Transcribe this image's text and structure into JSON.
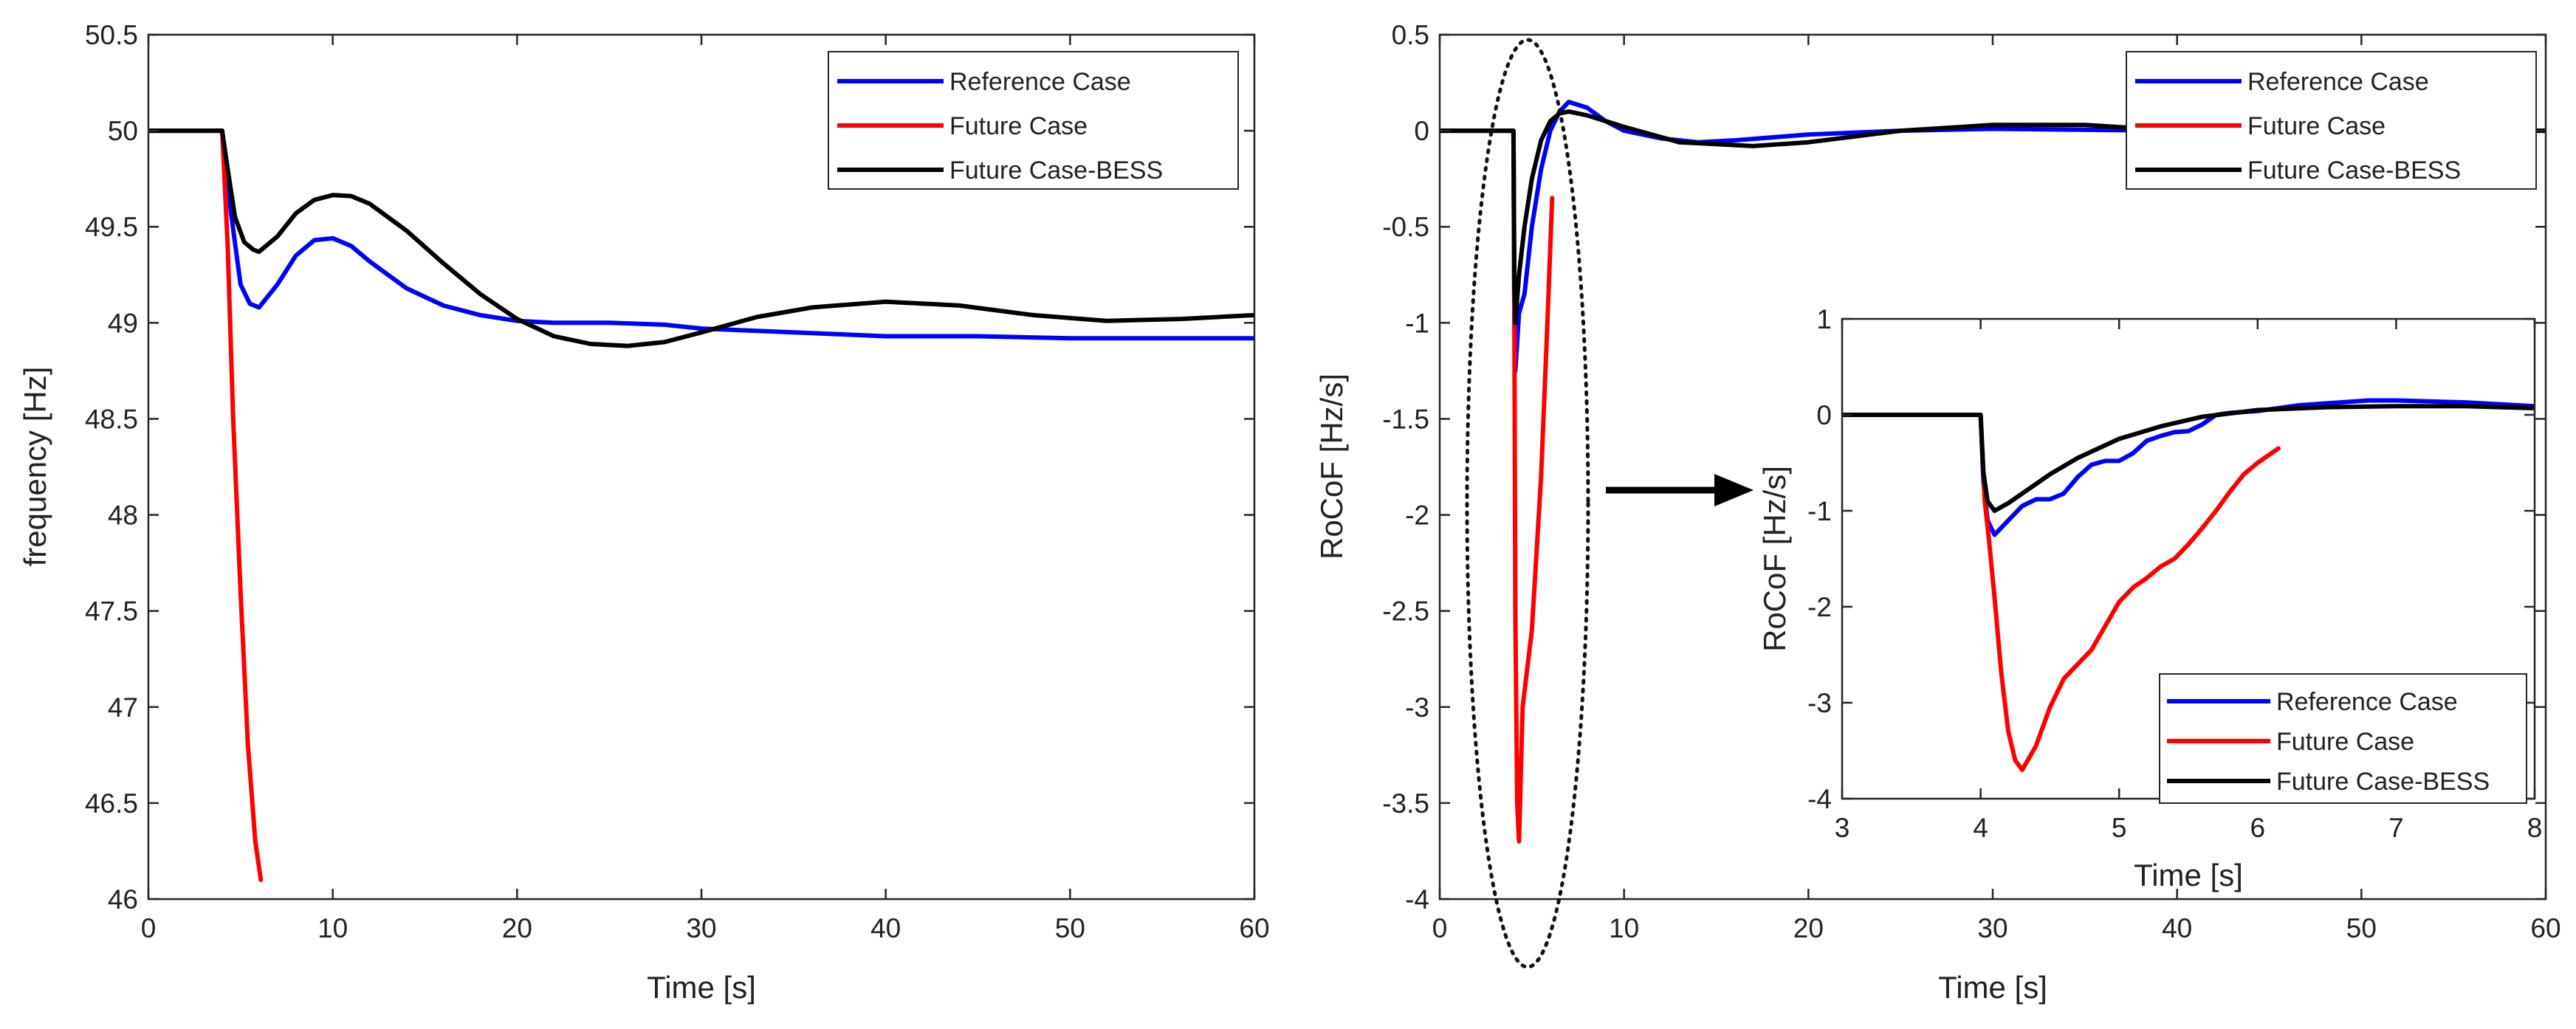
{
  "chart_data": [
    {
      "type": "line",
      "panel": "left",
      "title": "",
      "xlabel": "Time [s]",
      "ylabel": "frequency [Hz]",
      "xlim": [
        0,
        60
      ],
      "ylim": [
        46,
        50.5
      ],
      "xticks": [
        "0",
        "10",
        "20",
        "30",
        "40",
        "50",
        "60"
      ],
      "yticks": [
        "46",
        "46.5",
        "47",
        "47.5",
        "48",
        "48.5",
        "49",
        "49.5",
        "50",
        "50.5"
      ],
      "legend_position": "top-right",
      "series": [
        {
          "name": "Reference Case",
          "color": "#0000ff",
          "x": [
            0,
            4,
            4.3,
            5,
            5.5,
            6,
            7,
            8,
            9,
            10,
            11,
            12,
            14,
            16,
            18,
            20,
            22,
            25,
            28,
            30,
            35,
            40,
            45,
            50,
            55,
            60
          ],
          "y": [
            50,
            50,
            49.7,
            49.2,
            49.1,
            49.08,
            49.2,
            49.35,
            49.43,
            49.44,
            49.4,
            49.32,
            49.18,
            49.09,
            49.04,
            49.01,
            49.0,
            49.0,
            48.99,
            48.97,
            48.95,
            48.93,
            48.93,
            48.92,
            48.92,
            48.92
          ]
        },
        {
          "name": "Future Case",
          "color": "#ff0000",
          "x": [
            0,
            4,
            4.3,
            4.6,
            5.0,
            5.4,
            5.8,
            6.1
          ],
          "y": [
            50,
            50,
            49.4,
            48.5,
            47.6,
            46.8,
            46.3,
            46.1
          ]
        },
        {
          "name": "Future Case-BESS",
          "color": "#000000",
          "x": [
            0,
            4,
            4.3,
            4.7,
            5.2,
            5.7,
            6.0,
            7,
            8,
            9,
            10,
            11,
            12,
            14,
            16,
            18,
            20,
            22,
            24,
            26,
            28,
            30,
            33,
            36,
            40,
            44,
            48,
            52,
            56,
            60
          ],
          "y": [
            50,
            50,
            49.8,
            49.55,
            49.42,
            49.38,
            49.37,
            49.45,
            49.57,
            49.64,
            49.665,
            49.66,
            49.62,
            49.48,
            49.31,
            49.15,
            49.02,
            48.93,
            48.89,
            48.88,
            48.9,
            48.95,
            49.03,
            49.08,
            49.11,
            49.09,
            49.04,
            49.01,
            49.02,
            49.04
          ]
        }
      ]
    },
    {
      "type": "line",
      "panel": "right",
      "title": "",
      "xlabel": "Time [s]",
      "ylabel": "RoCoF [Hz/s]",
      "xlim": [
        0,
        60
      ],
      "ylim": [
        -4,
        0.5
      ],
      "xticks": [
        "0",
        "10",
        "20",
        "30",
        "40",
        "50",
        "60"
      ],
      "yticks": [
        "-4",
        "-3.5",
        "-3",
        "-2.5",
        "-2",
        "-1.5",
        "-1",
        "-0.5",
        "0",
        "0.5"
      ],
      "legend_position": "top-right",
      "annotations": [
        "dotted ellipse around 3.5–8 s",
        "arrow pointing to zoomed inset"
      ],
      "series": [
        {
          "name": "Reference Case",
          "color": "#0000ff",
          "x": [
            0,
            4,
            4.05,
            4.1,
            4.3,
            4.6,
            5,
            5.5,
            6,
            6.5,
            7,
            8,
            9,
            10,
            12,
            14,
            16,
            20,
            25,
            30,
            40,
            50,
            60
          ],
          "y": [
            0,
            0,
            -1.0,
            -1.25,
            -0.95,
            -0.85,
            -0.5,
            -0.2,
            0.0,
            0.1,
            0.15,
            0.12,
            0.05,
            0.0,
            -0.04,
            -0.06,
            -0.05,
            -0.02,
            0.0,
            0.01,
            0.0,
            0.0,
            0.0
          ]
        },
        {
          "name": "Future Case",
          "color": "#ff0000",
          "x": [
            0,
            4,
            4.05,
            4.1,
            4.2,
            4.3,
            4.5,
            5.0,
            5.5,
            5.8,
            6.1
          ],
          "y": [
            0,
            0,
            -1.0,
            -2.5,
            -3.5,
            -3.7,
            -3.0,
            -2.6,
            -1.8,
            -1.1,
            -0.35
          ]
        },
        {
          "name": "Future Case-BESS",
          "color": "#000000",
          "x": [
            0,
            4,
            4.05,
            4.1,
            4.3,
            4.6,
            5,
            5.5,
            6,
            6.5,
            7,
            8,
            10,
            13,
            17,
            20,
            25,
            30,
            35,
            40,
            50,
            60
          ],
          "y": [
            0,
            0,
            -0.8,
            -1.0,
            -0.75,
            -0.5,
            -0.25,
            -0.05,
            0.05,
            0.09,
            0.1,
            0.08,
            0.02,
            -0.06,
            -0.08,
            -0.06,
            0.0,
            0.03,
            0.03,
            0.0,
            0.0,
            0.0
          ]
        }
      ]
    },
    {
      "type": "line",
      "panel": "inset",
      "title": "",
      "xlabel": "Time [s]",
      "ylabel": "RoCoF [Hz/s]",
      "xlim": [
        3,
        8
      ],
      "ylim": [
        -4,
        1
      ],
      "xticks": [
        "3",
        "4",
        "5",
        "6",
        "7",
        "8"
      ],
      "yticks": [
        "-4",
        "-3",
        "-2",
        "-1",
        "0",
        "1"
      ],
      "legend_position": "bottom-right",
      "series": [
        {
          "name": "Reference Case",
          "color": "#0000ff",
          "x": [
            3,
            4,
            4.02,
            4.05,
            4.1,
            4.2,
            4.3,
            4.4,
            4.5,
            4.6,
            4.7,
            4.8,
            4.9,
            5.0,
            5.1,
            5.2,
            5.3,
            5.4,
            5.5,
            5.6,
            5.7,
            5.8,
            6.0,
            6.3,
            6.5,
            6.8,
            7.0,
            7.5,
            8.0
          ],
          "y": [
            0,
            0,
            -0.7,
            -1.1,
            -1.25,
            -1.1,
            -0.95,
            -0.88,
            -0.88,
            -0.82,
            -0.65,
            -0.52,
            -0.48,
            -0.48,
            -0.4,
            -0.27,
            -0.22,
            -0.18,
            -0.17,
            -0.1,
            0.0,
            0.02,
            0.04,
            0.1,
            0.12,
            0.15,
            0.15,
            0.13,
            0.09
          ]
        },
        {
          "name": "Future Case",
          "color": "#ff0000",
          "x": [
            3,
            4,
            4.03,
            4.06,
            4.1,
            4.15,
            4.2,
            4.25,
            4.3,
            4.4,
            4.5,
            4.6,
            4.7,
            4.8,
            4.9,
            5.0,
            5.1,
            5.2,
            5.3,
            5.4,
            5.5,
            5.6,
            5.7,
            5.8,
            5.9,
            6.0,
            6.15
          ],
          "y": [
            0,
            0,
            -0.9,
            -1.3,
            -1.9,
            -2.7,
            -3.3,
            -3.6,
            -3.7,
            -3.45,
            -3.05,
            -2.75,
            -2.6,
            -2.45,
            -2.2,
            -1.95,
            -1.8,
            -1.7,
            -1.58,
            -1.5,
            -1.35,
            -1.18,
            -1.0,
            -0.8,
            -0.62,
            -0.5,
            -0.35
          ]
        },
        {
          "name": "Future Case-BESS",
          "color": "#000000",
          "x": [
            3,
            4,
            4.02,
            4.05,
            4.1,
            4.2,
            4.3,
            4.5,
            4.7,
            5.0,
            5.3,
            5.6,
            6.0,
            6.5,
            7.0,
            7.5,
            8.0
          ],
          "y": [
            0,
            0,
            -0.6,
            -0.9,
            -1.0,
            -0.92,
            -0.82,
            -0.62,
            -0.45,
            -0.25,
            -0.12,
            -0.02,
            0.05,
            0.08,
            0.09,
            0.09,
            0.07
          ]
        }
      ]
    }
  ]
}
